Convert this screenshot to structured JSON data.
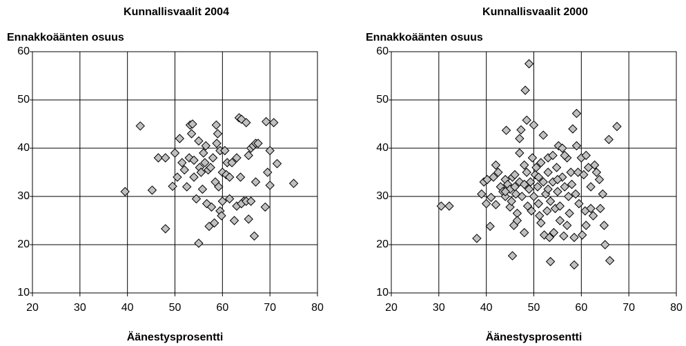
{
  "chart_data": [
    {
      "type": "scatter",
      "title": "Kunnallisvaalit 2004",
      "y_label": "Ennakkoäänten osuus",
      "x_label": "Äänestysprosentti",
      "x": [
        39.5,
        42.7,
        45.2,
        46.5,
        48,
        48,
        49.5,
        50,
        50.5,
        51,
        51.5,
        52,
        52.5,
        53,
        53.2,
        53.7,
        53.5,
        54,
        54,
        54.5,
        55,
        55,
        55.2,
        55.5,
        55.8,
        56,
        56.3,
        56.5,
        56.7,
        57,
        57.2,
        57.5,
        57.7,
        58,
        58.3,
        58.5,
        58.7,
        58.8,
        59,
        59.2,
        59.5,
        59.5,
        59.8,
        60,
        60,
        60.5,
        60.8,
        61,
        61.5,
        61.5,
        62,
        62.5,
        63,
        63,
        63.5,
        63.8,
        64,
        64.5,
        64,
        65,
        65,
        65.5,
        65.5,
        66,
        66,
        66.5,
        66.7,
        67,
        67,
        67.5,
        69,
        69.2,
        69.5,
        70,
        70,
        70.8,
        71.5,
        75
      ],
      "y": [
        31,
        44.6,
        31.3,
        38,
        23.3,
        38,
        32.1,
        39,
        34,
        42,
        37,
        35.5,
        32,
        38,
        44.8,
        45,
        43,
        37.5,
        34,
        29.5,
        41.5,
        20.3,
        36,
        35,
        31.5,
        39,
        37,
        40.5,
        28.5,
        35.5,
        23.8,
        36,
        27.8,
        38,
        24.5,
        33,
        44.8,
        41,
        43,
        32,
        39.5,
        27,
        26,
        35,
        29,
        39.5,
        34.5,
        37,
        34,
        29.5,
        37,
        25,
        28,
        38,
        46.3,
        34,
        46,
        29,
        28.5,
        45.3,
        29,
        38.5,
        25.3,
        40,
        29,
        40.5,
        21.8,
        33,
        41,
        41,
        27.8,
        45.5,
        35,
        32.3,
        39.5,
        45.3,
        36.8,
        32.7
      ],
      "color": "#c0c0c0",
      "xlim": [
        20,
        80
      ],
      "ylim": [
        10,
        60
      ],
      "xticks": [
        20,
        30,
        40,
        50,
        60,
        70,
        80
      ],
      "yticks": [
        10,
        20,
        30,
        40,
        50,
        60
      ],
      "grid": true
    },
    {
      "type": "scatter",
      "title": "Kunnallisvaalit 2000",
      "y_label": "Ennakkoäänten osuus",
      "x_label": "Äänestysprosentti",
      "x": [
        30.5,
        32.2,
        38,
        39,
        39.5,
        40,
        40.2,
        40.8,
        41,
        41.5,
        42,
        42,
        42.5,
        43,
        43.5,
        44,
        44,
        44.2,
        44.5,
        45,
        45,
        45.3,
        45.5,
        45.5,
        45.8,
        46,
        46.2,
        46.5,
        46.5,
        47,
        47,
        47,
        47.3,
        47.5,
        48,
        48,
        48.2,
        48.5,
        48.5,
        48.7,
        49,
        49,
        49.3,
        49.5,
        49.7,
        50,
        50,
        50.3,
        50.5,
        50.8,
        51,
        51.2,
        51.5,
        51.5,
        52,
        52,
        52.2,
        52.5,
        52.8,
        53,
        53,
        53.3,
        53.5,
        53.5,
        54,
        54,
        54.2,
        54.5,
        54.8,
        55,
        55.2,
        55.5,
        55.5,
        56,
        56,
        56.3,
        56.5,
        57,
        57,
        57.3,
        57.5,
        57.8,
        58,
        58.2,
        58.5,
        58.5,
        58.8,
        59,
        59,
        59.3,
        59.5,
        60,
        60.2,
        60.5,
        60.8,
        61,
        61,
        61.5,
        62,
        62,
        62.5,
        62.8,
        63.2,
        63.8,
        64,
        64.5,
        64.8,
        65,
        65.8,
        66,
        67.5,
        44,
        51,
        53,
        55,
        56.5,
        46,
        48
      ],
      "y": [
        28,
        28,
        21.3,
        30.5,
        33,
        28.5,
        33.5,
        23.8,
        29.8,
        34,
        36.5,
        28.3,
        35,
        32,
        31,
        33.5,
        30,
        43.7,
        32.5,
        27.8,
        31.5,
        29,
        17.7,
        34,
        24,
        32,
        30.5,
        26.5,
        25,
        42,
        39,
        33,
        43.8,
        30,
        36.5,
        22.5,
        52,
        45.8,
        35,
        28,
        57.5,
        31.5,
        33,
        27,
        38,
        44.8,
        30,
        34.5,
        36,
        32,
        28.5,
        26,
        37,
        24.5,
        33,
        42.7,
        22,
        30.5,
        27,
        38,
        35,
        21.5,
        29,
        16.5,
        33,
        38.5,
        22.5,
        27.5,
        36,
        31,
        40.5,
        28,
        25,
        34,
        40,
        21.8,
        32,
        38,
        24,
        30,
        26.5,
        35,
        32.5,
        44,
        21.5,
        15.8,
        30.5,
        47.2,
        40.5,
        35,
        28.5,
        38,
        22,
        34.5,
        27,
        38.5,
        24,
        36,
        32,
        27.5,
        26,
        36.5,
        35,
        33.5,
        27.5,
        30.5,
        24,
        20,
        41.8,
        16.7,
        44.5,
        31,
        34,
        31.5,
        33.5,
        38.5,
        34.5,
        32.5
      ],
      "color": "#c0c0c0",
      "xlim": [
        20,
        80
      ],
      "ylim": [
        10,
        60
      ],
      "xticks": [
        20,
        30,
        40,
        50,
        60,
        70,
        80
      ],
      "yticks": [
        10,
        20,
        30,
        40,
        50,
        60
      ],
      "grid": true
    }
  ]
}
